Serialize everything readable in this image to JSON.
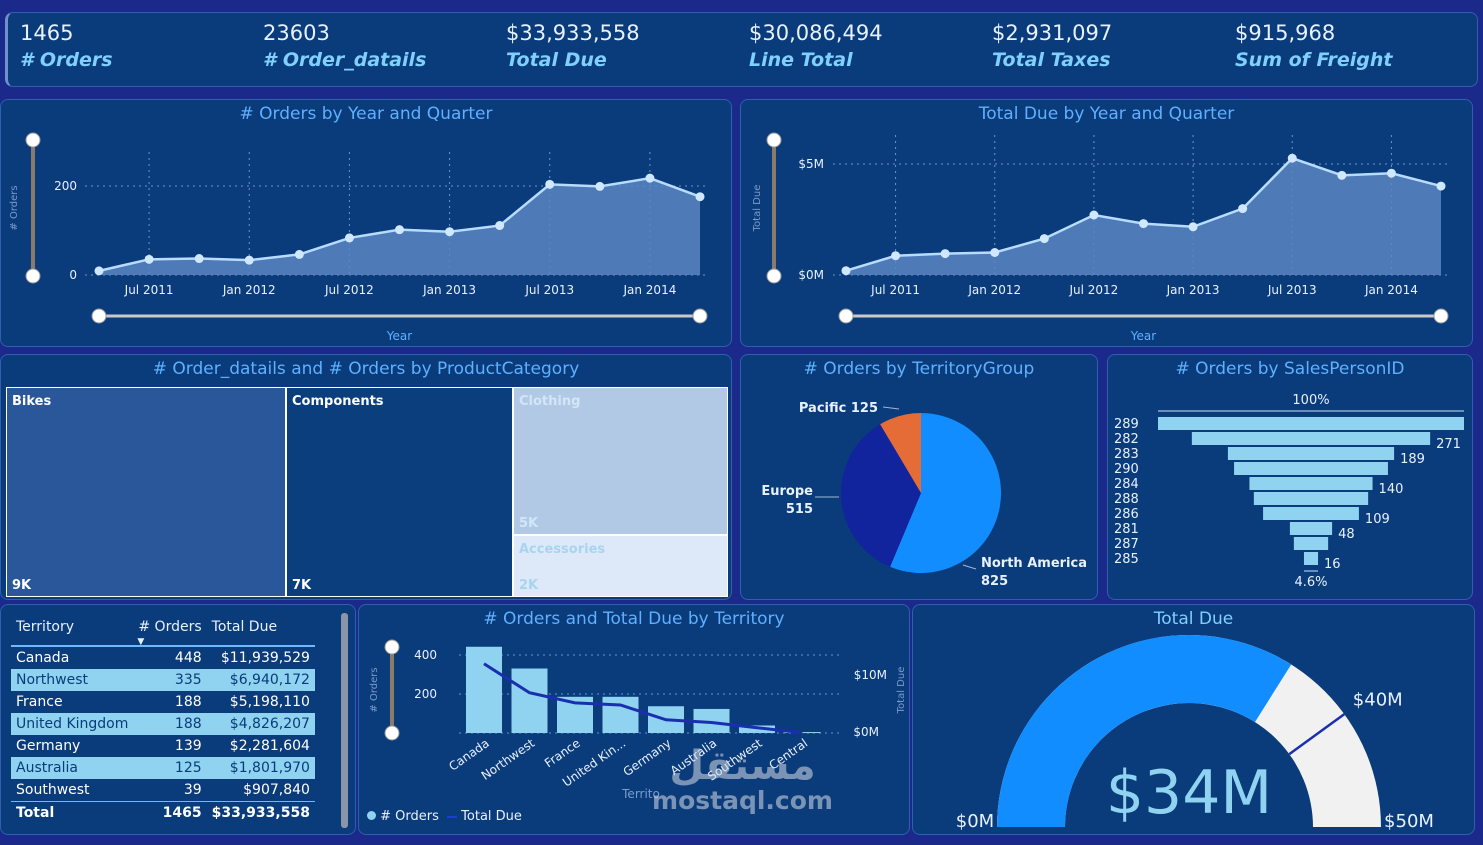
{
  "kpis": [
    {
      "value": "1465",
      "label": "# Orders"
    },
    {
      "value": "23603",
      "label": "# Order_datails"
    },
    {
      "value": "$33,933,558",
      "label": "Total Due"
    },
    {
      "value": "$30,086,494",
      "label": "Line Total"
    },
    {
      "value": "$2,931,097",
      "label": "Total Taxes"
    },
    {
      "value": "$915,968",
      "label": "Sum of Freight"
    }
  ],
  "chart_data": [
    {
      "id": "orders_by_year_quarter",
      "type": "area",
      "title": "# Orders by Year and Quarter",
      "xlabel": "Year",
      "ylabel": "# Orders",
      "x_ticks": [
        "Jul 2011",
        "Jan 2012",
        "Jul 2012",
        "Jan 2013",
        "Jul 2013",
        "Jan 2014"
      ],
      "y_ticks": [
        "0",
        "200"
      ],
      "ylim": [
        0,
        250
      ],
      "values": [
        10,
        38,
        40,
        36,
        50,
        90,
        110,
        105,
        120,
        220,
        215,
        235,
        190
      ]
    },
    {
      "id": "totaldue_by_year_quarter",
      "type": "area",
      "title": "Total Due by Year and Quarter",
      "xlabel": "Year",
      "ylabel": "Total Due",
      "x_ticks": [
        "Jul 2011",
        "Jan 2012",
        "Jul 2012",
        "Jan 2013",
        "Jul 2013",
        "Jan 2014"
      ],
      "y_ticks": [
        "$0M",
        "$5M"
      ],
      "ylim": [
        0,
        5600000
      ],
      "values": [
        200000,
        900000,
        1000000,
        1050000,
        1700000,
        2800000,
        2400000,
        2250000,
        3100000,
        5450000,
        4650000,
        4750000,
        4150000
      ]
    },
    {
      "id": "orders_by_productcategory",
      "type": "treemap",
      "title": "# Order_datails and # Orders by ProductCategory",
      "items": [
        {
          "name": "Bikes",
          "label": "9K",
          "color": "#2a5799"
        },
        {
          "name": "Components",
          "label": "7K",
          "color": "#0b3e7d"
        },
        {
          "name": "Clothing",
          "label": "5K",
          "color": "#b2c9e6"
        },
        {
          "name": "Accessories",
          "label": "2K",
          "color": "#dde9f8"
        }
      ]
    },
    {
      "id": "orders_by_territorygroup",
      "type": "pie",
      "title": "# Orders by TerritoryGroup",
      "slices": [
        {
          "name": "North America",
          "value": 825,
          "color": "#118dff"
        },
        {
          "name": "Europe",
          "value": 515,
          "color": "#12239e"
        },
        {
          "name": "Pacific",
          "value": 125,
          "color": "#e66c37"
        }
      ]
    },
    {
      "id": "orders_by_salespersonid",
      "type": "funnel",
      "title": "# Orders by SalesPersonID",
      "top_label": "100%",
      "bottom_label": "4.6%",
      "items": [
        {
          "id": "289",
          "value": 348
        },
        {
          "id": "282",
          "value": 271,
          "label": "271"
        },
        {
          "id": "283",
          "value": 189,
          "label": "189"
        },
        {
          "id": "290",
          "value": 175
        },
        {
          "id": "284",
          "value": 140,
          "label": "140"
        },
        {
          "id": "288",
          "value": 130
        },
        {
          "id": "286",
          "value": 109,
          "label": "109"
        },
        {
          "id": "281",
          "value": 48,
          "label": "48"
        },
        {
          "id": "287",
          "value": 39
        },
        {
          "id": "285",
          "value": 16,
          "label": "16"
        }
      ]
    },
    {
      "id": "orders_totaldue_by_territory",
      "type": "bar",
      "title": "# Orders and Total Due by Territory",
      "xlabel": "Territo",
      "ylabel_left": "# Orders",
      "ylabel_right": "Total Due",
      "y_ticks_left": [
        "200",
        "400"
      ],
      "y_ticks_right": [
        "$0M",
        "$10M"
      ],
      "categories": [
        "Canada",
        "Northwest",
        "France",
        "United Kin...",
        "Germany",
        "Australia",
        "Southwest",
        "Central"
      ],
      "series": [
        {
          "name": "# Orders",
          "values": [
            448,
            335,
            188,
            188,
            139,
            125,
            39,
            5
          ]
        },
        {
          "name": "Total Due",
          "values": [
            11939529,
            6940172,
            5198110,
            4826207,
            2281604,
            1801970,
            907840,
            40000
          ]
        }
      ]
    },
    {
      "id": "total_due_gauge",
      "type": "gauge",
      "title": "Total Due",
      "value_label": "$34M",
      "value": 33933558,
      "min": 0,
      "max": 50000000,
      "target": 40000000,
      "min_label": "$0M",
      "max_label": "$50M",
      "target_label": "$40M"
    }
  ],
  "territory_table": {
    "headers": [
      "Territory",
      "# Orders",
      "Total Due"
    ],
    "rows": [
      [
        "Canada",
        "448",
        "$11,939,529"
      ],
      [
        "Northwest",
        "335",
        "$6,940,172"
      ],
      [
        "France",
        "188",
        "$5,198,110"
      ],
      [
        "United Kingdom",
        "188",
        "$4,826,207"
      ],
      [
        "Germany",
        "139",
        "$2,281,604"
      ],
      [
        "Australia",
        "125",
        "$1,801,970"
      ],
      [
        "Southwest",
        "39",
        "$907,840"
      ]
    ],
    "total": [
      "Total",
      "1465",
      "$33,933,558"
    ]
  },
  "watermark": {
    "arabic": "مستقل",
    "site": "mostaql.com"
  }
}
